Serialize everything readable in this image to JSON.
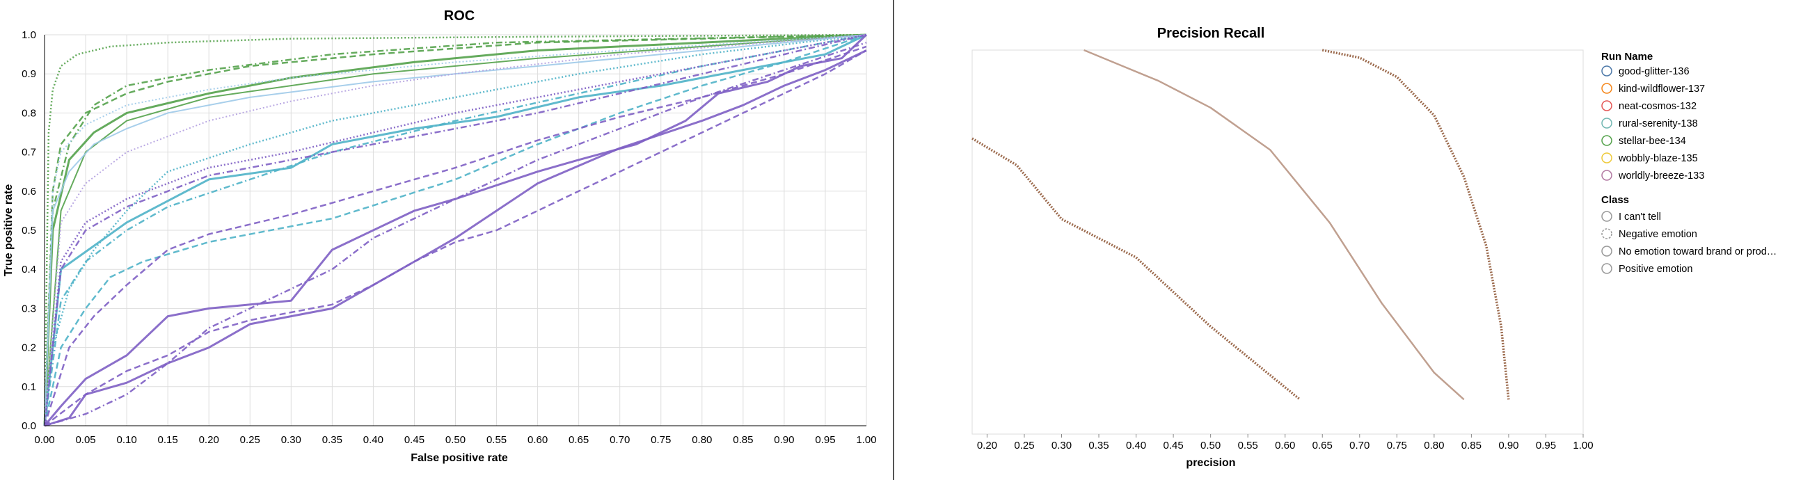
{
  "chart_data": [
    {
      "type": "line",
      "title": "ROC",
      "xlabel": "False positive rate",
      "ylabel": "True positive rate",
      "xlim": [
        0,
        1
      ],
      "ylim": [
        0,
        1
      ],
      "x_ticks": [
        "0.00",
        "0.05",
        "0.10",
        "0.15",
        "0.20",
        "0.25",
        "0.30",
        "0.35",
        "0.40",
        "0.45",
        "0.50",
        "0.55",
        "0.60",
        "0.65",
        "0.70",
        "0.75",
        "0.80",
        "0.85",
        "0.90",
        "0.95",
        "1.00"
      ],
      "y_ticks": [
        "0.0",
        "0.1",
        "0.2",
        "0.3",
        "0.4",
        "0.5",
        "0.6",
        "0.7",
        "0.8",
        "0.9",
        "1.0"
      ],
      "grid": true,
      "series": [
        {
          "run": "stellar-bee-134",
          "color": "#54a24b",
          "dash": "solid",
          "width": 3,
          "x": [
            0,
            0.01,
            0.03,
            0.06,
            0.1,
            0.2,
            0.3,
            0.45,
            0.6,
            0.8,
            1
          ],
          "y": [
            0,
            0.5,
            0.68,
            0.75,
            0.8,
            0.85,
            0.89,
            0.93,
            0.96,
            0.98,
            1
          ]
        },
        {
          "run": "stellar-bee-134",
          "color": "#54a24b",
          "dash": "dash",
          "width": 2.5,
          "x": [
            0,
            0.01,
            0.02,
            0.05,
            0.1,
            0.15,
            0.25,
            0.4,
            0.6,
            1
          ],
          "y": [
            0,
            0.6,
            0.72,
            0.8,
            0.85,
            0.88,
            0.92,
            0.95,
            0.98,
            1
          ]
        },
        {
          "run": "stellar-bee-134",
          "color": "#54a24b",
          "dash": "dot",
          "width": 2.5,
          "x": [
            0,
            0.005,
            0.01,
            0.02,
            0.04,
            0.08,
            0.15,
            0.3,
            0.6,
            1
          ],
          "y": [
            0,
            0.75,
            0.86,
            0.92,
            0.95,
            0.97,
            0.98,
            0.99,
            0.995,
            1
          ]
        },
        {
          "run": "stellar-bee-134",
          "color": "#54a24b",
          "dash": "dashdot",
          "width": 2.5,
          "x": [
            0,
            0.01,
            0.03,
            0.06,
            0.1,
            0.2,
            0.35,
            0.55,
            1
          ],
          "y": [
            0,
            0.55,
            0.72,
            0.82,
            0.87,
            0.91,
            0.95,
            0.98,
            1
          ]
        },
        {
          "run": "stellar-bee-134",
          "color": "#54a24b",
          "dash": "solid",
          "width": 2,
          "x": [
            0,
            0.02,
            0.05,
            0.1,
            0.2,
            0.3,
            0.4,
            0.6,
            0.8,
            1
          ],
          "y": [
            0,
            0.55,
            0.7,
            0.78,
            0.84,
            0.87,
            0.9,
            0.94,
            0.97,
            1
          ]
        },
        {
          "run": "rural-serenity-138",
          "color": "#4fb3c8",
          "dash": "solid",
          "width": 3,
          "x": [
            0,
            0.02,
            0.1,
            0.2,
            0.3,
            0.35,
            0.45,
            0.55,
            0.65,
            0.75,
            0.85,
            0.95,
            1
          ],
          "y": [
            0,
            0.4,
            0.52,
            0.63,
            0.66,
            0.72,
            0.76,
            0.79,
            0.84,
            0.87,
            0.91,
            0.95,
            1
          ]
        },
        {
          "run": "rural-serenity-138",
          "color": "#4fb3c8",
          "dash": "dash",
          "width": 2.5,
          "x": [
            0,
            0.02,
            0.05,
            0.08,
            0.12,
            0.2,
            0.35,
            0.5,
            0.6,
            0.7,
            0.8,
            0.9,
            1
          ],
          "y": [
            0,
            0.2,
            0.3,
            0.38,
            0.42,
            0.47,
            0.53,
            0.63,
            0.72,
            0.8,
            0.87,
            0.93,
            1
          ]
        },
        {
          "run": "rural-serenity-138",
          "color": "#4fb3c8",
          "dash": "dot",
          "width": 2.5,
          "x": [
            0,
            0.01,
            0.03,
            0.06,
            0.1,
            0.15,
            0.25,
            0.35,
            0.5,
            0.65,
            0.8,
            1
          ],
          "y": [
            0,
            0.2,
            0.35,
            0.45,
            0.55,
            0.65,
            0.72,
            0.78,
            0.84,
            0.9,
            0.95,
            1
          ]
        },
        {
          "run": "rural-serenity-138",
          "color": "#4fb3c8",
          "dash": "dashdot",
          "width": 2.5,
          "x": [
            0,
            0.02,
            0.05,
            0.1,
            0.15,
            0.25,
            0.35,
            0.5,
            0.65,
            0.8,
            1
          ],
          "y": [
            0,
            0.32,
            0.42,
            0.5,
            0.56,
            0.63,
            0.7,
            0.78,
            0.85,
            0.92,
            1
          ]
        },
        {
          "run": "rural-serenity-138",
          "color": "#9ecae9",
          "dash": "solid",
          "width": 2,
          "x": [
            0,
            0.01,
            0.03,
            0.06,
            0.1,
            0.15,
            0.25,
            0.4,
            0.6,
            0.8,
            1
          ],
          "y": [
            0,
            0.55,
            0.65,
            0.72,
            0.76,
            0.8,
            0.84,
            0.88,
            0.92,
            0.96,
            1
          ]
        },
        {
          "run": "rural-serenity-138",
          "color": "#9ecae9",
          "dash": "dot",
          "width": 2,
          "x": [
            0,
            0.01,
            0.02,
            0.05,
            0.1,
            0.2,
            0.3,
            0.5,
            0.7,
            1
          ],
          "y": [
            0,
            0.6,
            0.7,
            0.77,
            0.82,
            0.86,
            0.89,
            0.93,
            0.96,
            1
          ]
        },
        {
          "run": "worldly-breeze-133",
          "color": "#7e5fc4",
          "dash": "solid",
          "width": 3,
          "x": [
            0,
            0.02,
            0.05,
            0.1,
            0.15,
            0.2,
            0.3,
            0.35,
            0.45,
            0.5,
            0.6,
            0.65,
            0.72,
            0.78,
            0.82,
            0.88,
            0.92,
            0.97,
            1
          ],
          "y": [
            0,
            0.05,
            0.12,
            0.18,
            0.28,
            0.3,
            0.32,
            0.45,
            0.55,
            0.58,
            0.65,
            0.68,
            0.72,
            0.78,
            0.85,
            0.88,
            0.92,
            0.94,
            1
          ]
        },
        {
          "run": "worldly-breeze-133",
          "color": "#7e5fc4",
          "dash": "solid",
          "width": 3,
          "x": [
            0,
            0.03,
            0.05,
            0.1,
            0.15,
            0.2,
            0.25,
            0.3,
            0.35,
            0.4,
            0.45,
            0.5,
            0.55,
            0.6,
            0.7,
            0.8,
            0.85,
            0.9,
            0.95,
            1
          ],
          "y": [
            0,
            0.02,
            0.08,
            0.11,
            0.16,
            0.2,
            0.26,
            0.28,
            0.3,
            0.36,
            0.42,
            0.48,
            0.55,
            0.62,
            0.71,
            0.78,
            0.82,
            0.87,
            0.91,
            0.96
          ]
        },
        {
          "run": "worldly-breeze-133",
          "color": "#7e5fc4",
          "dash": "dash",
          "width": 2.5,
          "x": [
            0,
            0.05,
            0.1,
            0.15,
            0.2,
            0.25,
            0.3,
            0.35,
            0.4,
            0.45,
            0.5,
            0.55,
            0.6,
            0.65,
            0.7,
            0.75,
            0.8,
            0.85,
            0.9,
            0.95,
            1
          ],
          "y": [
            0,
            0.08,
            0.14,
            0.18,
            0.24,
            0.27,
            0.29,
            0.31,
            0.36,
            0.42,
            0.47,
            0.5,
            0.55,
            0.6,
            0.65,
            0.7,
            0.75,
            0.8,
            0.85,
            0.9,
            0.96
          ]
        },
        {
          "run": "worldly-breeze-133",
          "color": "#7e5fc4",
          "dash": "dash",
          "width": 2.5,
          "x": [
            0,
            0.03,
            0.06,
            0.1,
            0.15,
            0.2,
            0.3,
            0.4,
            0.5,
            0.6,
            0.7,
            0.8,
            0.9,
            1
          ],
          "y": [
            0,
            0.2,
            0.28,
            0.36,
            0.45,
            0.49,
            0.54,
            0.6,
            0.66,
            0.73,
            0.79,
            0.84,
            0.9,
            0.97
          ]
        },
        {
          "run": "worldly-breeze-133",
          "color": "#7e5fc4",
          "dash": "dashdot",
          "width": 2.5,
          "x": [
            0,
            0.05,
            0.1,
            0.15,
            0.2,
            0.25,
            0.3,
            0.35,
            0.4,
            0.5,
            0.6,
            0.7,
            0.8,
            0.9,
            1
          ],
          "y": [
            0,
            0.03,
            0.08,
            0.16,
            0.25,
            0.3,
            0.35,
            0.4,
            0.48,
            0.58,
            0.68,
            0.76,
            0.84,
            0.91,
            0.98
          ]
        },
        {
          "run": "worldly-breeze-133",
          "color": "#7e5fc4",
          "dash": "dashdot",
          "width": 2.5,
          "x": [
            0,
            0.02,
            0.05,
            0.1,
            0.15,
            0.2,
            0.3,
            0.4,
            0.5,
            0.6,
            0.7,
            0.8,
            0.9,
            1
          ],
          "y": [
            0,
            0.4,
            0.5,
            0.56,
            0.6,
            0.64,
            0.68,
            0.72,
            0.76,
            0.8,
            0.85,
            0.9,
            0.95,
            1
          ]
        },
        {
          "run": "worldly-breeze-133",
          "color": "#7e5fc4",
          "dash": "dot",
          "width": 2.5,
          "x": [
            0,
            0.02,
            0.05,
            0.1,
            0.15,
            0.2,
            0.3,
            0.4,
            0.5,
            0.6,
            0.7,
            0.8,
            0.9,
            1
          ],
          "y": [
            0,
            0.42,
            0.52,
            0.58,
            0.62,
            0.66,
            0.7,
            0.75,
            0.8,
            0.84,
            0.88,
            0.92,
            0.96,
            1
          ]
        },
        {
          "run": "worldly-breeze-133",
          "color": "#b3a0e0",
          "dash": "dot",
          "width": 2,
          "x": [
            0,
            0.02,
            0.05,
            0.1,
            0.15,
            0.2,
            0.3,
            0.4,
            0.5,
            0.7,
            1
          ],
          "y": [
            0,
            0.52,
            0.62,
            0.7,
            0.74,
            0.78,
            0.83,
            0.87,
            0.9,
            0.95,
            1
          ]
        }
      ]
    },
    {
      "type": "line",
      "title": "Precision Recall",
      "xlabel": "precision",
      "ylabel": "",
      "xlim": [
        0.18,
        1.0
      ],
      "x_ticks": [
        "0.20",
        "0.25",
        "0.30",
        "0.35",
        "0.40",
        "0.45",
        "0.50",
        "0.55",
        "0.60",
        "0.65",
        "0.70",
        "0.75",
        "0.80",
        "0.85",
        "0.90",
        "0.95",
        "1.00"
      ],
      "grid": false,
      "series": [
        {
          "color": "#9c6b4e",
          "dash": "dot",
          "x": [
            0.18,
            0.24,
            0.3,
            0.4,
            0.5,
            0.62
          ],
          "y": [
            0.77,
            0.7,
            0.56,
            0.46,
            0.28,
            0.09
          ]
        },
        {
          "color": "#c0a090",
          "dash": "solid",
          "x": [
            0.33,
            0.38,
            0.43,
            0.5,
            0.58,
            0.66,
            0.73,
            0.8,
            0.84
          ],
          "y": [
            1.0,
            0.96,
            0.92,
            0.85,
            0.74,
            0.55,
            0.34,
            0.16,
            0.09
          ]
        },
        {
          "color": "#9c6b4e",
          "dash": "dot",
          "x": [
            0.65,
            0.7,
            0.75,
            0.8,
            0.84,
            0.87,
            0.89,
            0.9
          ],
          "y": [
            1.0,
            0.98,
            0.93,
            0.83,
            0.67,
            0.49,
            0.28,
            0.09
          ]
        }
      ]
    }
  ],
  "legend": {
    "run_title": "Run Name",
    "runs": [
      {
        "label": "good-glitter-136",
        "color": "#4c78a8"
      },
      {
        "label": "kind-wildflower-137",
        "color": "#f58518"
      },
      {
        "label": "neat-cosmos-132",
        "color": "#e45756"
      },
      {
        "label": "rural-serenity-138",
        "color": "#72b7b2"
      },
      {
        "label": "stellar-bee-134",
        "color": "#54a24b"
      },
      {
        "label": "wobbly-blaze-135",
        "color": "#eeca3b"
      },
      {
        "label": "worldly-breeze-133",
        "color": "#b279a2"
      }
    ],
    "class_title": "Class",
    "classes": [
      {
        "label": "I can't tell",
        "dash": "solid"
      },
      {
        "label": "Negative emotion",
        "dash": "dash"
      },
      {
        "label": "No emotion toward brand or prod…",
        "dash": "solid"
      },
      {
        "label": "Positive emotion",
        "dash": "solid"
      }
    ]
  },
  "colors": {
    "divider": "#555555",
    "grid": "#dddddd"
  }
}
